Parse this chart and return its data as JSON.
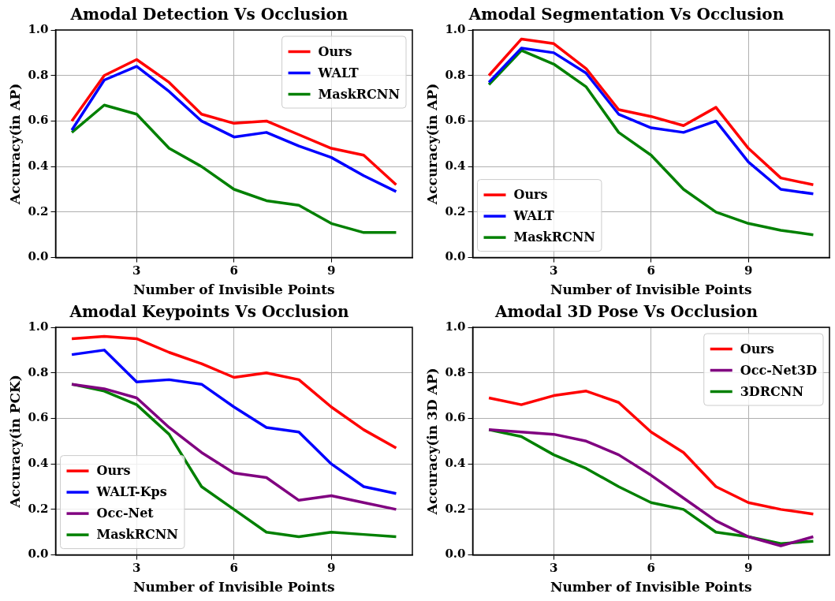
{
  "chart_data": [
    {
      "type": "line",
      "title": "Amodal Detection Vs Occlusion",
      "xlabel": "Number of Invisible Points",
      "ylabel": "Accuracy(in AP)",
      "x": [
        1,
        2,
        3,
        4,
        5,
        6,
        7,
        8,
        9,
        10,
        11
      ],
      "xlim": [
        0.5,
        11.5
      ],
      "xticks": [
        3,
        6,
        9
      ],
      "ylim": [
        0,
        1
      ],
      "yticks": [
        {
          "value": 0,
          "label": "0.0"
        },
        {
          "value": 0.2,
          "label": "0.2"
        },
        {
          "value": 0.4,
          "label": "0.4"
        },
        {
          "value": 0.6,
          "label": "0.6"
        },
        {
          "value": 0.8,
          "label": "0.8"
        },
        {
          "value": 1,
          "label": "1.0"
        }
      ],
      "grid": true,
      "legend": "top right",
      "marker": "none",
      "line_style": "solid",
      "series": [
        {
          "name": "Ours",
          "color": "#ff0000",
          "values": [
            0.6,
            0.8,
            0.87,
            0.77,
            0.63,
            0.59,
            0.6,
            0.54,
            0.48,
            0.45,
            0.32
          ]
        },
        {
          "name": "WALT",
          "color": "#0000ff",
          "values": [
            0.56,
            0.78,
            0.84,
            0.73,
            0.6,
            0.53,
            0.55,
            0.49,
            0.44,
            0.36,
            0.29
          ]
        },
        {
          "name": "MaskRCNN",
          "color": "#008000",
          "values": [
            0.55,
            0.67,
            0.63,
            0.48,
            0.4,
            0.3,
            0.25,
            0.23,
            0.15,
            0.11,
            0.11
          ]
        }
      ]
    },
    {
      "type": "line",
      "title": "Amodal Segmentation Vs Occlusion",
      "xlabel": "Number of Invisible Points",
      "ylabel": "Accuracy(in AP)",
      "x": [
        1,
        2,
        3,
        4,
        5,
        6,
        7,
        8,
        9,
        10,
        11
      ],
      "xlim": [
        0.5,
        11.5
      ],
      "xticks": [
        3,
        6,
        9
      ],
      "ylim": [
        0,
        1
      ],
      "yticks": [
        {
          "value": 0,
          "label": "0.0"
        },
        {
          "value": 0.2,
          "label": "0.2"
        },
        {
          "value": 0.4,
          "label": "0.4"
        },
        {
          "value": 0.6,
          "label": "0.6"
        },
        {
          "value": 0.8,
          "label": "0.8"
        },
        {
          "value": 1,
          "label": "1.0"
        }
      ],
      "grid": true,
      "legend": "bottom left",
      "marker": "none",
      "line_style": "solid",
      "series": [
        {
          "name": "Ours",
          "color": "#ff0000",
          "values": [
            0.8,
            0.96,
            0.94,
            0.83,
            0.65,
            0.62,
            0.58,
            0.66,
            0.48,
            0.35,
            0.32
          ]
        },
        {
          "name": "WALT",
          "color": "#0000ff",
          "values": [
            0.77,
            0.92,
            0.9,
            0.81,
            0.63,
            0.57,
            0.55,
            0.6,
            0.42,
            0.3,
            0.28
          ]
        },
        {
          "name": "MaskRCNN",
          "color": "#008000",
          "values": [
            0.76,
            0.91,
            0.85,
            0.75,
            0.55,
            0.45,
            0.3,
            0.2,
            0.15,
            0.12,
            0.1
          ]
        }
      ]
    },
    {
      "type": "line",
      "title": "Amodal Keypoints Vs Occlusion",
      "xlabel": "Number of Invisible Points",
      "ylabel": "Accuracy(in PCK)",
      "x": [
        1,
        2,
        3,
        4,
        5,
        6,
        7,
        8,
        9,
        10,
        11
      ],
      "xlim": [
        0.5,
        11.5
      ],
      "xticks": [
        3,
        6,
        9
      ],
      "ylim": [
        0,
        1
      ],
      "yticks": [
        {
          "value": 0,
          "label": "0.0"
        },
        {
          "value": 0.2,
          "label": "0.2"
        },
        {
          "value": 0.4,
          "label": "0.4"
        },
        {
          "value": 0.6,
          "label": "0.6"
        },
        {
          "value": 0.8,
          "label": "0.8"
        },
        {
          "value": 1,
          "label": "1.0"
        }
      ],
      "grid": true,
      "legend": "bottom left",
      "marker": "none",
      "line_style": "solid",
      "series": [
        {
          "name": "Ours",
          "color": "#ff0000",
          "values": [
            0.95,
            0.96,
            0.95,
            0.89,
            0.84,
            0.78,
            0.8,
            0.77,
            0.65,
            0.55,
            0.47
          ]
        },
        {
          "name": "WALT-Kps",
          "color": "#0000ff",
          "values": [
            0.88,
            0.9,
            0.76,
            0.77,
            0.75,
            0.65,
            0.56,
            0.54,
            0.4,
            0.3,
            0.27
          ]
        },
        {
          "name": "Occ-Net",
          "color": "#800080",
          "values": [
            0.75,
            0.73,
            0.69,
            0.56,
            0.45,
            0.36,
            0.34,
            0.24,
            0.26,
            0.23,
            0.2
          ]
        },
        {
          "name": "MaskRCNN",
          "color": "#008000",
          "values": [
            0.75,
            0.72,
            0.66,
            0.53,
            0.3,
            0.2,
            0.1,
            0.08,
            0.1,
            0.09,
            0.08
          ]
        }
      ]
    },
    {
      "type": "line",
      "title": "Amodal 3D Pose Vs Occlusion",
      "xlabel": "Number of Invisible Points",
      "ylabel": "Accuracy(in 3D AP)",
      "x": [
        1,
        2,
        3,
        4,
        5,
        6,
        7,
        8,
        9,
        10,
        11
      ],
      "xlim": [
        0.5,
        11.5
      ],
      "xticks": [
        3,
        6,
        9
      ],
      "ylim": [
        0,
        1
      ],
      "yticks": [
        {
          "value": 0,
          "label": "0.0"
        },
        {
          "value": 0.2,
          "label": "0.2"
        },
        {
          "value": 0.4,
          "label": "0.4"
        },
        {
          "value": 0.6,
          "label": "0.6"
        },
        {
          "value": 0.8,
          "label": "0.8"
        },
        {
          "value": 1,
          "label": "1.0"
        }
      ],
      "grid": true,
      "legend": "top right",
      "marker": "none",
      "line_style": "solid",
      "series": [
        {
          "name": "Ours",
          "color": "#ff0000",
          "values": [
            0.69,
            0.66,
            0.7,
            0.72,
            0.67,
            0.54,
            0.45,
            0.3,
            0.23,
            0.2,
            0.18
          ]
        },
        {
          "name": "Occ-Net3D",
          "color": "#800080",
          "values": [
            0.55,
            0.54,
            0.53,
            0.5,
            0.44,
            0.35,
            0.25,
            0.15,
            0.08,
            0.04,
            0.08
          ]
        },
        {
          "name": "3DRCNN",
          "color": "#008000",
          "values": [
            0.55,
            0.52,
            0.44,
            0.38,
            0.3,
            0.23,
            0.2,
            0.1,
            0.08,
            0.05,
            0.06
          ]
        }
      ]
    }
  ]
}
